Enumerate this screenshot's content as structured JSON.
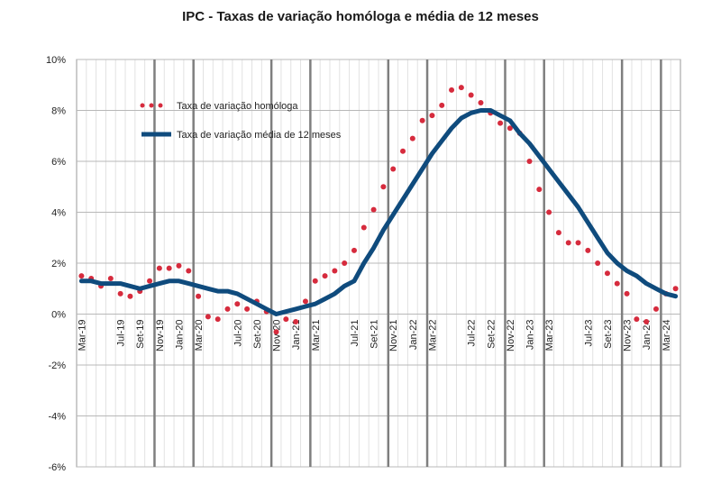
{
  "chart_data": {
    "type": "line",
    "title": "IPC - Taxas de variação homóloga e média de 12 meses",
    "xlabel": "",
    "ylabel": "",
    "ylim": [
      -6,
      10
    ],
    "y_ticks": [
      "10%",
      "8%",
      "6%",
      "4%",
      "2%",
      "0%",
      "-2%",
      "-4%",
      "-6%"
    ],
    "y_tick_values": [
      10,
      8,
      6,
      4,
      2,
      0,
      -2,
      -4,
      -6
    ],
    "months": [
      "Mar-19",
      "Apr-19",
      "May-19",
      "Jun-19",
      "Jul-19",
      "Aug-19",
      "Sep-19",
      "Oct-19",
      "Nov-19",
      "Dec-19",
      "Jan-20",
      "Feb-20",
      "Mar-20",
      "Apr-20",
      "May-20",
      "Jun-20",
      "Jul-20",
      "Aug-20",
      "Sep-20",
      "Oct-20",
      "Nov-20",
      "Dec-20",
      "Jan-21",
      "Feb-21",
      "Mar-21",
      "Apr-21",
      "May-21",
      "Jun-21",
      "Jul-21",
      "Aug-21",
      "Sep-21",
      "Oct-21",
      "Nov-21",
      "Dec-21",
      "Jan-22",
      "Feb-22",
      "Mar-22",
      "Apr-22",
      "May-22",
      "Jun-22",
      "Jul-22",
      "Aug-22",
      "Sep-22",
      "Oct-22",
      "Nov-22",
      "Dec-22",
      "Jan-23",
      "Feb-23",
      "Mar-23",
      "Apr-23",
      "May-23",
      "Jun-23",
      "Jul-23",
      "Aug-23",
      "Sep-23",
      "Oct-23",
      "Nov-23",
      "Dec-23",
      "Jan-24",
      "Feb-24",
      "Mar-24",
      "Apr-24"
    ],
    "x_tick_labels": [
      "Mar-19",
      "Jul-19",
      "Set-19",
      "Nov-19",
      "Jan-20",
      "Mar-20",
      "Jul-20",
      "Set-20",
      "Nov-20",
      "Jan-21",
      "Mar-21",
      "Jul-21",
      "Set-21",
      "Nov-21",
      "Jan-22",
      "Mar-22",
      "Jul-22",
      "Set-22",
      "Nov-22",
      "Jan-23",
      "Mar-23",
      "Jul-23",
      "Set-23",
      "Nov-23",
      "Jan-24",
      "Mar-24"
    ],
    "x_tick_indices": [
      0,
      4,
      6,
      8,
      10,
      12,
      16,
      18,
      20,
      22,
      24,
      28,
      30,
      32,
      34,
      36,
      40,
      42,
      44,
      46,
      48,
      52,
      54,
      56,
      58,
      60
    ],
    "year_lines": [
      8,
      12,
      20,
      24,
      32,
      36,
      44,
      48,
      56,
      60
    ],
    "grid": true,
    "legend_placement": "top-left",
    "series": [
      {
        "name": "Taxa de variação homóloga",
        "style": "dotted",
        "color": "#d62b3d",
        "values": [
          1.5,
          1.4,
          1.1,
          1.4,
          0.8,
          0.7,
          0.9,
          1.3,
          1.8,
          1.8,
          1.9,
          1.7,
          0.7,
          -0.1,
          -0.2,
          0.2,
          0.4,
          0.2,
          0.5,
          0.1,
          -0.7,
          -0.2,
          -0.3,
          0.5,
          1.3,
          1.5,
          1.7,
          2.0,
          2.5,
          3.4,
          4.1,
          5.0,
          5.7,
          6.4,
          6.9,
          7.6,
          7.8,
          8.2,
          8.8,
          8.9,
          8.6,
          8.3,
          7.9,
          7.5,
          7.3,
          7.1,
          6.0,
          4.9,
          4.0,
          3.2,
          2.8,
          2.8,
          2.5,
          2.0,
          1.6,
          1.2,
          0.8,
          -0.2,
          -0.3,
          0.2,
          0.8,
          1.0
        ]
      },
      {
        "name": "Taxa de variação média de 12 meses",
        "style": "solid",
        "color": "#0f4b7d",
        "values": [
          1.3,
          1.3,
          1.2,
          1.2,
          1.2,
          1.1,
          1.0,
          1.1,
          1.2,
          1.3,
          1.3,
          1.2,
          1.1,
          1.0,
          0.9,
          0.9,
          0.8,
          0.6,
          0.4,
          0.2,
          0.0,
          0.1,
          0.2,
          0.3,
          0.4,
          0.6,
          0.8,
          1.1,
          1.3,
          2.0,
          2.6,
          3.3,
          3.9,
          4.5,
          5.1,
          5.7,
          6.3,
          6.8,
          7.3,
          7.7,
          7.9,
          8.0,
          8.0,
          7.8,
          7.6,
          7.1,
          6.7,
          6.2,
          5.7,
          5.2,
          4.7,
          4.2,
          3.6,
          3.0,
          2.4,
          2.0,
          1.7,
          1.5,
          1.2,
          1.0,
          0.8,
          0.7
        ]
      }
    ]
  }
}
